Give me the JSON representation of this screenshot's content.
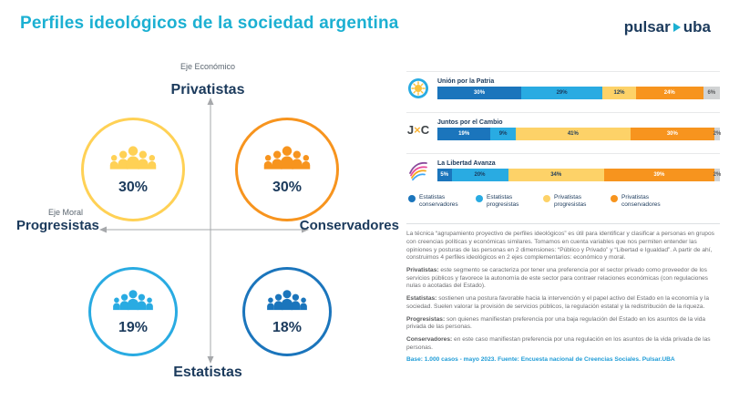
{
  "header": {
    "title": "Perfiles ideológicos de la sociedad argentina",
    "logo_text_1": "pulsar",
    "logo_text_2": "uba"
  },
  "quadrant": {
    "economic_axis_label": "Eje Económico",
    "moral_axis_label": "Eje Moral",
    "top_label": "Privatistas",
    "bottom_label": "Estatistas",
    "left_label": "Progresistas",
    "right_label": "Conservadores",
    "profiles": [
      {
        "name": "Privatistas progresistas",
        "value": "30%",
        "color": "#FFD155",
        "pos": "top-left"
      },
      {
        "name": "Privatistas conservadores",
        "value": "30%",
        "color": "#F7941E",
        "pos": "top-right"
      },
      {
        "name": "Estatistas progresistas",
        "value": "19%",
        "color": "#29ABE2",
        "pos": "bottom-left"
      },
      {
        "name": "Estatistas conservadores",
        "value": "18%",
        "color": "#1B75BC",
        "pos": "bottom-right"
      }
    ]
  },
  "chart_data": {
    "type": "bar",
    "stacked": true,
    "orientation": "horizontal",
    "unit": "%",
    "x_max": 100,
    "categories": [
      "Unión por la Patria",
      "Juntos por el Cambio",
      "La Libertad Avanza"
    ],
    "logo_icons": [
      "union-por-la-patria-sun-logo",
      "juntos-por-el-cambio-jxc-logo",
      "la-libertad-avanza-bird-logo"
    ],
    "series": [
      {
        "name": "Estatistas conservadores",
        "color": "#1B75BC",
        "text_color": "#FFFFFF",
        "values": [
          30,
          19,
          5
        ]
      },
      {
        "name": "Estatistas progresistas",
        "color": "#29ABE2",
        "text_color": "#1B3A5C",
        "values": [
          29,
          9,
          20
        ]
      },
      {
        "name": "Privatistas progresistas",
        "color": "#FDD268",
        "text_color": "#1B3A5C",
        "values": [
          12,
          41,
          34
        ]
      },
      {
        "name": "Privatistas conservadores",
        "color": "#F7941E",
        "text_color": "#FFFFFF",
        "values": [
          24,
          30,
          39
        ]
      },
      {
        "name": "",
        "color": "#D1D3D4",
        "text_color": "#58595B",
        "values": [
          6,
          2,
          2
        ]
      }
    ],
    "legend": [
      {
        "label": "Estatistas conservadores",
        "color": "#1B75BC"
      },
      {
        "label": "Estatistas progresistas",
        "color": "#29ABE2"
      },
      {
        "label": "Privatistas progresistas",
        "color": "#FDD268"
      },
      {
        "label": "Privatistas conservadores",
        "color": "#F7941E"
      }
    ]
  },
  "description": {
    "paragraphs": [
      {
        "lead": "",
        "text": "La técnica “agrupamiento proyectivo de perfiles ideológicos” es útil para identificar y clasificar a personas en grupos con creencias políticas y económicas similares. Tomamos en cuenta variables que nos permiten entender las opiniones y posturas de las personas en 2 dimensiones: “Público y Privado” y “Libertad e Igualdad”. A partir de ahí, construimos 4 perfiles ideológicos en 2 ejes complementarios: económico y moral."
      },
      {
        "lead": "Privatistas:",
        "text": "este segmento se caracteriza por tener una preferencia por el sector privado como proveedor de los servicios públicos y favorece la autonomía de este sector para contraer relaciones económicas (con regulaciones nulas o acotadas del Estado)."
      },
      {
        "lead": "Estatistas:",
        "text": "sostienen una postura favorable hacia la intervención y el papel activo del Estado en la economía y la sociedad. Suelen valorar la provisión de servicios públicos, la regulación estatal y la redistribución de la riqueza."
      },
      {
        "lead": "Progresistas:",
        "text": "son quienes manifiestan preferencia por una baja regulación del Estado en los asuntos de la vida privada de las personas."
      },
      {
        "lead": "Conservadores:",
        "text": "en este caso manifiestan preferencia por una regulación en los asuntos de la vida privada de las personas."
      }
    ],
    "base": "Base: 1.000 casos - mayo 2023. Fuente: Encuesta nacional de Creencias Sociales. Pulsar.UBA"
  }
}
